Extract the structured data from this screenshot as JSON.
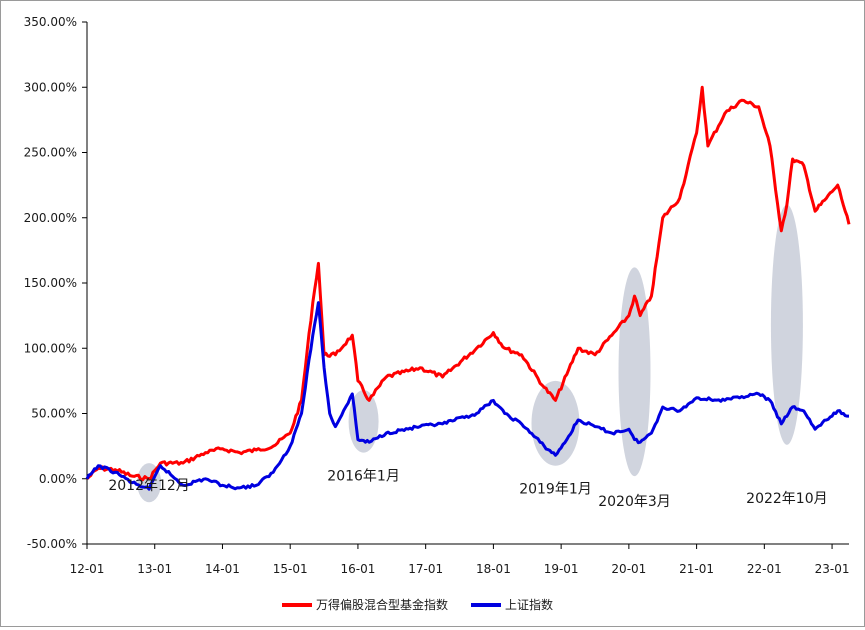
{
  "chart_data": {
    "type": "line",
    "x_range": [
      "12-01",
      "23-04"
    ],
    "ylim": [
      -50,
      350
    ],
    "y_ticks": [
      "350.00%",
      "300.00%",
      "250.00%",
      "200.00%",
      "150.00%",
      "100.00%",
      "50.00%",
      "0.00%",
      "-50.00%"
    ],
    "x_ticks": [
      "12-01",
      "13-01",
      "14-01",
      "15-01",
      "16-01",
      "17-01",
      "18-01",
      "19-01",
      "20-01",
      "21-01",
      "22-01",
      "23-01"
    ],
    "grid": false,
    "legend_position": "bottom",
    "series": [
      {
        "name": "万得偏股混合型基金指数",
        "color": "#ff0000",
        "points": [
          [
            "12-01",
            0
          ],
          [
            "12-03",
            8
          ],
          [
            "12-06",
            7
          ],
          [
            "12-09",
            2
          ],
          [
            "12-12",
            0
          ],
          [
            "13-02",
            12
          ],
          [
            "13-06",
            12
          ],
          [
            "13-10",
            20
          ],
          [
            "14-01",
            23
          ],
          [
            "14-04",
            20
          ],
          [
            "14-07",
            22
          ],
          [
            "14-10",
            25
          ],
          [
            "15-01",
            35
          ],
          [
            "15-03",
            60
          ],
          [
            "15-05",
            135
          ],
          [
            "15-06",
            165
          ],
          [
            "15-07",
            95
          ],
          [
            "15-09",
            95
          ],
          [
            "15-12",
            110
          ],
          [
            "16-01",
            75
          ],
          [
            "16-03",
            60
          ],
          [
            "16-06",
            78
          ],
          [
            "16-12",
            85
          ],
          [
            "17-04",
            78
          ],
          [
            "17-10",
            100
          ],
          [
            "18-01",
            112
          ],
          [
            "18-03",
            100
          ],
          [
            "18-06",
            95
          ],
          [
            "18-10",
            70
          ],
          [
            "18-12",
            60
          ],
          [
            "19-02",
            80
          ],
          [
            "19-04",
            100
          ],
          [
            "19-07",
            95
          ],
          [
            "19-10",
            110
          ],
          [
            "20-01",
            125
          ],
          [
            "20-02",
            140
          ],
          [
            "20-03",
            125
          ],
          [
            "20-05",
            140
          ],
          [
            "20-07",
            200
          ],
          [
            "20-10",
            215
          ],
          [
            "21-01",
            265
          ],
          [
            "21-02",
            300
          ],
          [
            "21-03",
            255
          ],
          [
            "21-06",
            280
          ],
          [
            "21-09",
            290
          ],
          [
            "21-12",
            285
          ],
          [
            "22-02",
            255
          ],
          [
            "22-04",
            190
          ],
          [
            "22-05",
            210
          ],
          [
            "22-06",
            245
          ],
          [
            "22-08",
            240
          ],
          [
            "22-10",
            205
          ],
          [
            "22-12",
            215
          ],
          [
            "23-01",
            220
          ],
          [
            "23-02",
            225
          ],
          [
            "23-04",
            195
          ]
        ]
      },
      {
        "name": "上证指数",
        "color": "#0000e0",
        "points": [
          [
            "12-01",
            0
          ],
          [
            "12-03",
            10
          ],
          [
            "12-06",
            5
          ],
          [
            "12-09",
            -3
          ],
          [
            "12-12",
            -8
          ],
          [
            "13-02",
            10
          ],
          [
            "13-06",
            -5
          ],
          [
            "13-10",
            0
          ],
          [
            "14-01",
            -5
          ],
          [
            "14-04",
            -7
          ],
          [
            "14-07",
            -5
          ],
          [
            "14-10",
            5
          ],
          [
            "15-01",
            25
          ],
          [
            "15-03",
            50
          ],
          [
            "15-05",
            110
          ],
          [
            "15-06",
            135
          ],
          [
            "15-07",
            85
          ],
          [
            "15-08",
            50
          ],
          [
            "15-09",
            40
          ],
          [
            "15-12",
            65
          ],
          [
            "16-01",
            30
          ],
          [
            "16-03",
            28
          ],
          [
            "16-06",
            35
          ],
          [
            "16-12",
            40
          ],
          [
            "17-04",
            42
          ],
          [
            "17-10",
            50
          ],
          [
            "18-01",
            60
          ],
          [
            "18-03",
            50
          ],
          [
            "18-06",
            42
          ],
          [
            "18-10",
            25
          ],
          [
            "18-12",
            18
          ],
          [
            "19-02",
            30
          ],
          [
            "19-04",
            45
          ],
          [
            "19-07",
            40
          ],
          [
            "19-10",
            35
          ],
          [
            "20-01",
            38
          ],
          [
            "20-02",
            30
          ],
          [
            "20-03",
            28
          ],
          [
            "20-05",
            35
          ],
          [
            "20-07",
            55
          ],
          [
            "20-10",
            52
          ],
          [
            "21-01",
            62
          ],
          [
            "21-06",
            60
          ],
          [
            "21-09",
            63
          ],
          [
            "21-12",
            65
          ],
          [
            "22-02",
            60
          ],
          [
            "22-04",
            42
          ],
          [
            "22-06",
            55
          ],
          [
            "22-08",
            52
          ],
          [
            "22-10",
            38
          ],
          [
            "22-12",
            45
          ],
          [
            "23-01",
            48
          ],
          [
            "23-02",
            52
          ],
          [
            "23-04",
            48
          ]
        ]
      }
    ],
    "annotations": [
      {
        "label": "2012年12月",
        "x": "12-12"
      },
      {
        "label": "2016年1月",
        "x": "16-02"
      },
      {
        "label": "2019年1月",
        "x": "18-12"
      },
      {
        "label": "2020年3月",
        "x": "20-02"
      },
      {
        "label": "2022年10月",
        "x": "22-05"
      }
    ]
  }
}
